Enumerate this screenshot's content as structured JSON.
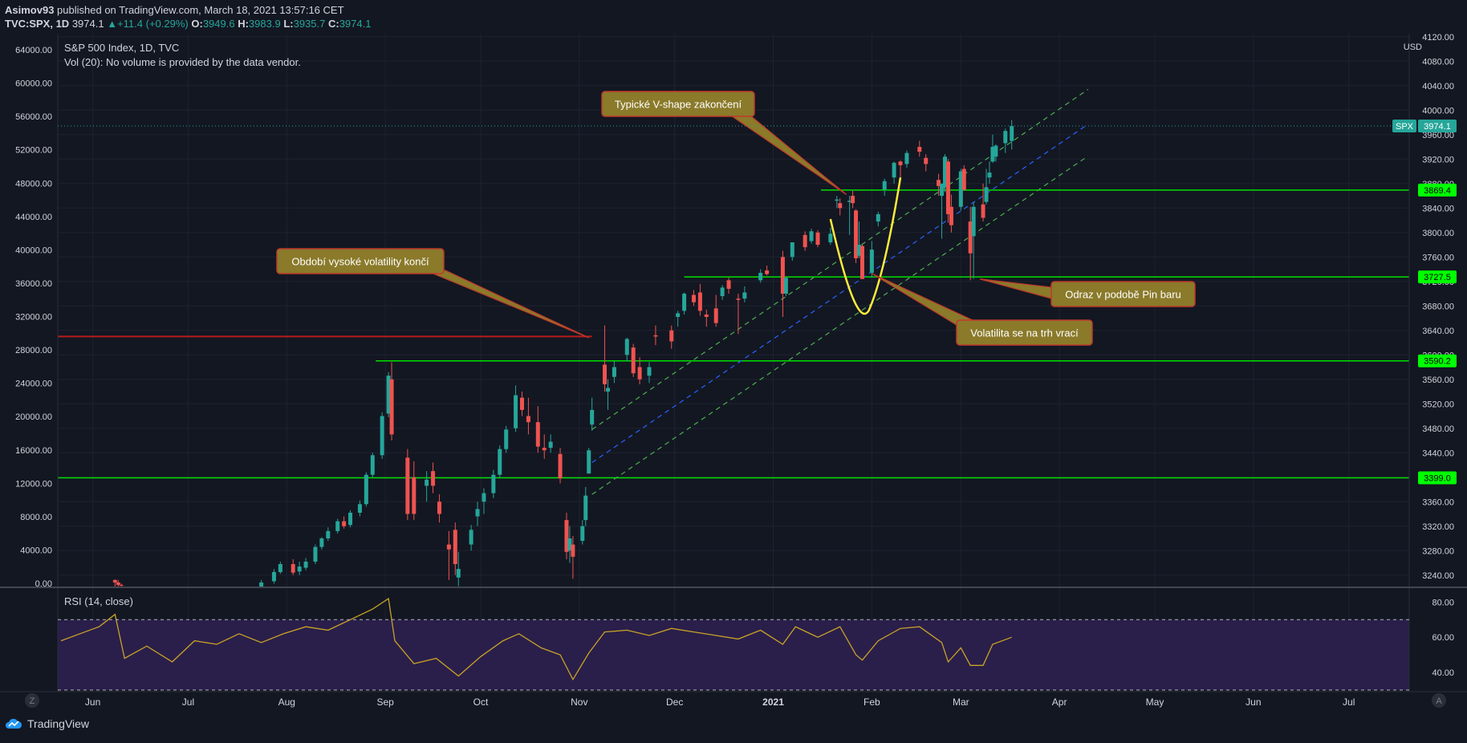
{
  "header": {
    "publisher": "Asimov93",
    "published_text": "published on TradingView.com, March 18, 2021 13:57:16 CET",
    "symbol_line": "TVC:SPX, 1D",
    "last": "3974.1",
    "change": "+11.4 (+0.29%)",
    "o_label": "O:",
    "o": "3949.6",
    "h_label": "H:",
    "h": "3983.9",
    "l_label": "L:",
    "l": "3935.7",
    "c_label": "C:",
    "c": "3974.1"
  },
  "legend": {
    "title": "S&P 500 Index, 1D, TVC",
    "volume_note": "Vol (20): No volume is provided by the data vendor.",
    "rsi_label": "RSI (14, close)"
  },
  "axes": {
    "left_ticks": [
      "64000.00",
      "60000.00",
      "56000.00",
      "52000.00",
      "48000.00",
      "44000.00",
      "40000.00",
      "36000.00",
      "32000.00",
      "28000.00",
      "24000.00",
      "20000.00",
      "16000.00",
      "12000.00",
      "8000.00",
      "4000.00",
      "0.00"
    ],
    "right_unit": "USD",
    "right_ticks": [
      "4120.00",
      "4080.00",
      "4040.00",
      "4000.00",
      "3960.00",
      "3920.00",
      "3880.00",
      "3840.00",
      "3800.00",
      "3760.00",
      "3720.00",
      "3680.00",
      "3640.00",
      "3600.00",
      "3560.00",
      "3520.00",
      "3480.00",
      "3440.00",
      "3400.00",
      "3360.00",
      "3320.00",
      "3280.00",
      "3240.00"
    ],
    "rsi_ticks": [
      "80.00",
      "60.00",
      "40.00"
    ],
    "x_ticks": [
      "Jun",
      "Jul",
      "Aug",
      "Sep",
      "Oct",
      "Nov",
      "Dec",
      "2021",
      "Feb",
      "Mar",
      "Apr",
      "May",
      "Jun",
      "Jul"
    ],
    "bottom_left_button": "Z",
    "bottom_right_button": "A"
  },
  "price_labels": [
    {
      "text": "SPX",
      "color": "#26a69a"
    },
    {
      "text": "3974.1",
      "color": "#26a69a"
    },
    {
      "text": "3869.4",
      "color": "#00ff00"
    },
    {
      "text": "3727.5",
      "color": "#00ff00"
    },
    {
      "text": "3590.2",
      "color": "#00ff00"
    },
    {
      "text": "3399.0",
      "color": "#00ff00"
    }
  ],
  "annotations": [
    "Typické V-shape zakončení",
    "Období vysoké volatility končí",
    "Odraz v podobě Pin baru",
    "Volatilita se na trh vrací"
  ],
  "colors": {
    "background": "#131722",
    "up": "#26a69a",
    "down": "#ef5350",
    "support": "#00e000",
    "resistance": "#b71c1c",
    "channel_outer": "#4caf50",
    "channel_mid": "#2962ff",
    "v_shape": "#ffeb3b",
    "rsi_line": "#c9a227",
    "rsi_band": "#2a1f4a",
    "callout_fill": "#8a7a2a",
    "callout_border": "#c0392b"
  },
  "chart_data": {
    "type": "candlestick",
    "title": "S&P 500 Index, 1D, TVC",
    "ylabel": "USD",
    "ylim": [
      3220,
      4125
    ],
    "x_range": [
      "2020-05-21",
      "2021-07-20"
    ],
    "series": [
      {
        "name": "SPX",
        "points": [
          [
            "2020-06-08",
            3232,
            3233,
            3220,
            3228
          ],
          [
            "2020-06-09",
            3228,
            3232,
            3220,
            3224
          ],
          [
            "2020-06-10",
            3224,
            3226,
            3220,
            3223
          ],
          [
            "2020-07-24",
            3220,
            3232,
            3220,
            3228
          ],
          [
            "2020-07-28",
            3230,
            3250,
            3226,
            3245
          ],
          [
            "2020-07-30",
            3245,
            3262,
            3242,
            3258
          ],
          [
            "2020-08-03",
            3258,
            3266,
            3240,
            3244
          ],
          [
            "2020-08-05",
            3246,
            3262,
            3240,
            3254
          ],
          [
            "2020-08-07",
            3252,
            3268,
            3248,
            3262
          ],
          [
            "2020-08-10",
            3262,
            3290,
            3258,
            3286
          ],
          [
            "2020-08-12",
            3286,
            3302,
            3282,
            3300
          ],
          [
            "2020-08-14",
            3300,
            3318,
            3296,
            3312
          ],
          [
            "2020-08-17",
            3312,
            3332,
            3308,
            3328
          ],
          [
            "2020-08-19",
            3328,
            3336,
            3316,
            3320
          ],
          [
            "2020-08-21",
            3322,
            3346,
            3318,
            3342
          ],
          [
            "2020-08-24",
            3342,
            3362,
            3336,
            3356
          ],
          [
            "2020-08-26",
            3356,
            3408,
            3352,
            3404
          ],
          [
            "2020-08-28",
            3404,
            3440,
            3400,
            3436
          ],
          [
            "2020-08-31",
            3436,
            3506,
            3430,
            3500
          ],
          [
            "2020-09-02",
            3504,
            3572,
            3498,
            3566
          ],
          [
            "2020-09-03",
            3560,
            3588,
            3460,
            3470
          ],
          [
            "2020-09-08",
            3432,
            3446,
            3330,
            3340
          ],
          [
            "2020-09-10",
            3400,
            3426,
            3330,
            3340
          ],
          [
            "2020-09-14",
            3386,
            3410,
            3360,
            3396
          ],
          [
            "2020-09-16",
            3410,
            3424,
            3374,
            3386
          ],
          [
            "2020-09-18",
            3360,
            3372,
            3326,
            3340
          ],
          [
            "2020-09-21",
            3290,
            3312,
            3232,
            3282
          ],
          [
            "2020-09-23",
            3314,
            3326,
            3240,
            3258
          ],
          [
            "2020-09-24",
            3236,
            3278,
            3222,
            3250
          ],
          [
            "2020-09-28",
            3290,
            3322,
            3280,
            3314
          ],
          [
            "2020-09-30",
            3336,
            3360,
            3320,
            3348
          ],
          [
            "2020-10-02",
            3360,
            3382,
            3340,
            3374
          ],
          [
            "2020-10-05",
            3374,
            3412,
            3366,
            3404
          ],
          [
            "2020-10-07",
            3404,
            3452,
            3398,
            3446
          ],
          [
            "2020-10-09",
            3446,
            3484,
            3440,
            3478
          ],
          [
            "2020-10-12",
            3480,
            3550,
            3474,
            3534
          ],
          [
            "2020-10-14",
            3530,
            3540,
            3500,
            3510
          ],
          [
            "2020-10-16",
            3500,
            3530,
            3470,
            3490
          ],
          [
            "2020-10-19",
            3490,
            3516,
            3440,
            3450
          ],
          [
            "2020-10-21",
            3448,
            3470,
            3430,
            3444
          ],
          [
            "2020-10-23",
            3448,
            3470,
            3440,
            3458
          ],
          [
            "2020-10-26",
            3438,
            3448,
            3390,
            3398
          ],
          [
            "2020-10-28",
            3330,
            3342,
            3266,
            3278
          ],
          [
            "2020-10-29",
            3280,
            3320,
            3260,
            3300
          ],
          [
            "2020-10-30",
            3290,
            3304,
            3234,
            3270
          ],
          [
            "2020-11-02",
            3296,
            3330,
            3290,
            3320
          ],
          [
            "2020-11-03",
            3330,
            3384,
            3320,
            3370
          ],
          [
            "2020-11-04",
            3406,
            3448,
            3406,
            3444
          ],
          [
            "2020-11-05",
            3486,
            3530,
            3476,
            3510
          ],
          [
            "2020-11-09",
            3584,
            3648,
            3540,
            3552
          ],
          [
            "2020-11-10",
            3540,
            3560,
            3510,
            3546
          ],
          [
            "2020-11-12",
            3564,
            3590,
            3554,
            3580
          ],
          [
            "2020-11-16",
            3600,
            3628,
            3590,
            3626
          ],
          [
            "2020-11-18",
            3612,
            3618,
            3564,
            3570
          ],
          [
            "2020-11-20",
            3580,
            3596,
            3552,
            3560
          ],
          [
            "2020-11-23",
            3566,
            3588,
            3554,
            3580
          ],
          [
            "2020-11-25",
            3632,
            3648,
            3616,
            3630
          ],
          [
            "2020-11-30",
            3640,
            3648,
            3610,
            3622
          ],
          [
            "2020-12-02",
            3662,
            3672,
            3646,
            3668
          ],
          [
            "2020-12-04",
            3672,
            3702,
            3666,
            3700
          ],
          [
            "2020-12-07",
            3698,
            3706,
            3680,
            3686
          ],
          [
            "2020-12-09",
            3702,
            3716,
            3664,
            3672
          ],
          [
            "2020-12-11",
            3666,
            3674,
            3646,
            3662
          ],
          [
            "2020-12-14",
            3676,
            3698,
            3646,
            3652
          ],
          [
            "2020-12-16",
            3696,
            3714,
            3690,
            3710
          ],
          [
            "2020-12-18",
            3722,
            3726,
            3700,
            3708
          ],
          [
            "2020-12-21",
            3692,
            3700,
            3634,
            3690
          ],
          [
            "2020-12-23",
            3692,
            3712,
            3686,
            3702
          ],
          [
            "2020-12-28",
            3722,
            3740,
            3718,
            3734
          ],
          [
            "2020-12-30",
            3738,
            3746,
            3730,
            3732
          ],
          [
            "2021-01-04",
            3760,
            3770,
            3662,
            3700
          ],
          [
            "2021-01-05",
            3700,
            3728,
            3696,
            3726
          ],
          [
            "2021-01-07",
            3760,
            3784,
            3754,
            3784
          ],
          [
            "2021-01-11",
            3796,
            3802,
            3770,
            3776
          ],
          [
            "2021-01-13",
            3786,
            3806,
            3782,
            3802
          ],
          [
            "2021-01-15",
            3800,
            3804,
            3776,
            3780
          ],
          [
            "2021-01-19",
            3784,
            3808,
            3780,
            3798
          ],
          [
            "2021-01-21",
            3852,
            3860,
            3840,
            3854
          ],
          [
            "2021-01-22",
            3848,
            3856,
            3828,
            3840
          ],
          [
            "2021-01-25",
            3850,
            3860,
            3796,
            3852
          ],
          [
            "2021-01-26",
            3860,
            3868,
            3840,
            3848
          ],
          [
            "2021-01-27",
            3836,
            3838,
            3750,
            3758
          ],
          [
            "2021-01-28",
            3762,
            3818,
            3758,
            3780
          ],
          [
            "2021-01-29",
            3778,
            3780,
            3730,
            3724
          ],
          [
            "2021-02-01",
            3734,
            3786,
            3726,
            3772
          ],
          [
            "2021-02-03",
            3818,
            3834,
            3810,
            3830
          ],
          [
            "2021-02-05",
            3870,
            3888,
            3860,
            3884
          ],
          [
            "2021-02-08",
            3890,
            3916,
            3880,
            3914
          ],
          [
            "2021-02-10",
            3916,
            3918,
            3890,
            3910
          ],
          [
            "2021-02-12",
            3912,
            3934,
            3906,
            3930
          ],
          [
            "2021-02-16",
            3940,
            3950,
            3924,
            3932
          ],
          [
            "2021-02-18",
            3922,
            3928,
            3900,
            3912
          ],
          [
            "2021-02-22",
            3886,
            3896,
            3860,
            3876
          ],
          [
            "2021-02-23",
            3860,
            3880,
            3790,
            3880
          ],
          [
            "2021-02-24",
            3874,
            3928,
            3866,
            3924
          ],
          [
            "2021-02-25",
            3916,
            3920,
            3816,
            3830
          ],
          [
            "2021-02-26",
            3842,
            3862,
            3800,
            3812
          ],
          [
            "2021-03-01",
            3842,
            3904,
            3836,
            3900
          ],
          [
            "2021-03-02",
            3904,
            3910,
            3868,
            3870
          ],
          [
            "2021-03-04",
            3818,
            3842,
            3722,
            3766
          ],
          [
            "2021-03-05",
            3794,
            3850,
            3724,
            3842
          ],
          [
            "2021-03-08",
            3846,
            3880,
            3818,
            3824
          ],
          [
            "2021-03-09",
            3850,
            3904,
            3846,
            3874
          ],
          [
            "2021-03-10",
            3890,
            3916,
            3880,
            3898
          ],
          [
            "2021-03-11",
            3916,
            3960,
            3914,
            3940
          ],
          [
            "2021-03-12",
            3924,
            3944,
            3916,
            3942
          ],
          [
            "2021-03-15",
            3946,
            3970,
            3930,
            3966
          ],
          [
            "2021-03-17",
            3949.6,
            3983.9,
            3935.7,
            3974.1
          ]
        ]
      }
    ],
    "horizontal_levels": [
      {
        "value": 3869.4,
        "from": "2021-01-16"
      },
      {
        "value": 3727.5,
        "from": "2020-12-04"
      },
      {
        "value": 3590.2,
        "from": "2020-08-29"
      },
      {
        "value": 3399.0,
        "from": "2020-05-21"
      },
      {
        "value": 3630,
        "from": "2020-05-21",
        "to": "2020-11-05"
      }
    ],
    "rsi": {
      "label": "RSI (14, close)",
      "levels": [
        70,
        30
      ],
      "ylim": [
        30,
        87
      ],
      "values": [
        [
          "2020-05-22",
          58
        ],
        [
          "2020-05-28",
          62
        ],
        [
          "2020-06-03",
          66
        ],
        [
          "2020-06-08",
          73
        ],
        [
          "2020-06-11",
          48
        ],
        [
          "2020-06-18",
          55
        ],
        [
          "2020-06-26",
          46
        ],
        [
          "2020-07-03",
          58
        ],
        [
          "2020-07-10",
          56
        ],
        [
          "2020-07-17",
          62
        ],
        [
          "2020-07-24",
          57
        ],
        [
          "2020-07-31",
          62
        ],
        [
          "2020-08-07",
          66
        ],
        [
          "2020-08-14",
          64
        ],
        [
          "2020-08-21",
          70
        ],
        [
          "2020-08-28",
          76
        ],
        [
          "2020-09-02",
          82
        ],
        [
          "2020-09-04",
          58
        ],
        [
          "2020-09-10",
          45
        ],
        [
          "2020-09-17",
          48
        ],
        [
          "2020-09-24",
          38
        ],
        [
          "2020-10-01",
          49
        ],
        [
          "2020-10-08",
          58
        ],
        [
          "2020-10-13",
          62
        ],
        [
          "2020-10-20",
          54
        ],
        [
          "2020-10-26",
          50
        ],
        [
          "2020-10-30",
          36
        ],
        [
          "2020-11-04",
          51
        ],
        [
          "2020-11-09",
          63
        ],
        [
          "2020-11-16",
          64
        ],
        [
          "2020-11-23",
          61
        ],
        [
          "2020-11-30",
          65
        ],
        [
          "2020-12-07",
          63
        ],
        [
          "2020-12-14",
          61
        ],
        [
          "2020-12-21",
          59
        ],
        [
          "2020-12-28",
          64
        ],
        [
          "2021-01-04",
          56
        ],
        [
          "2021-01-08",
          66
        ],
        [
          "2021-01-15",
          60
        ],
        [
          "2021-01-22",
          66
        ],
        [
          "2021-01-27",
          50
        ],
        [
          "2021-01-29",
          47
        ],
        [
          "2021-02-03",
          58
        ],
        [
          "2021-02-10",
          65
        ],
        [
          "2021-02-16",
          66
        ],
        [
          "2021-02-23",
          57
        ],
        [
          "2021-02-25",
          46
        ],
        [
          "2021-03-01",
          54
        ],
        [
          "2021-03-04",
          44
        ],
        [
          "2021-03-08",
          44
        ],
        [
          "2021-03-11",
          56
        ],
        [
          "2021-03-17",
          60
        ]
      ]
    }
  }
}
